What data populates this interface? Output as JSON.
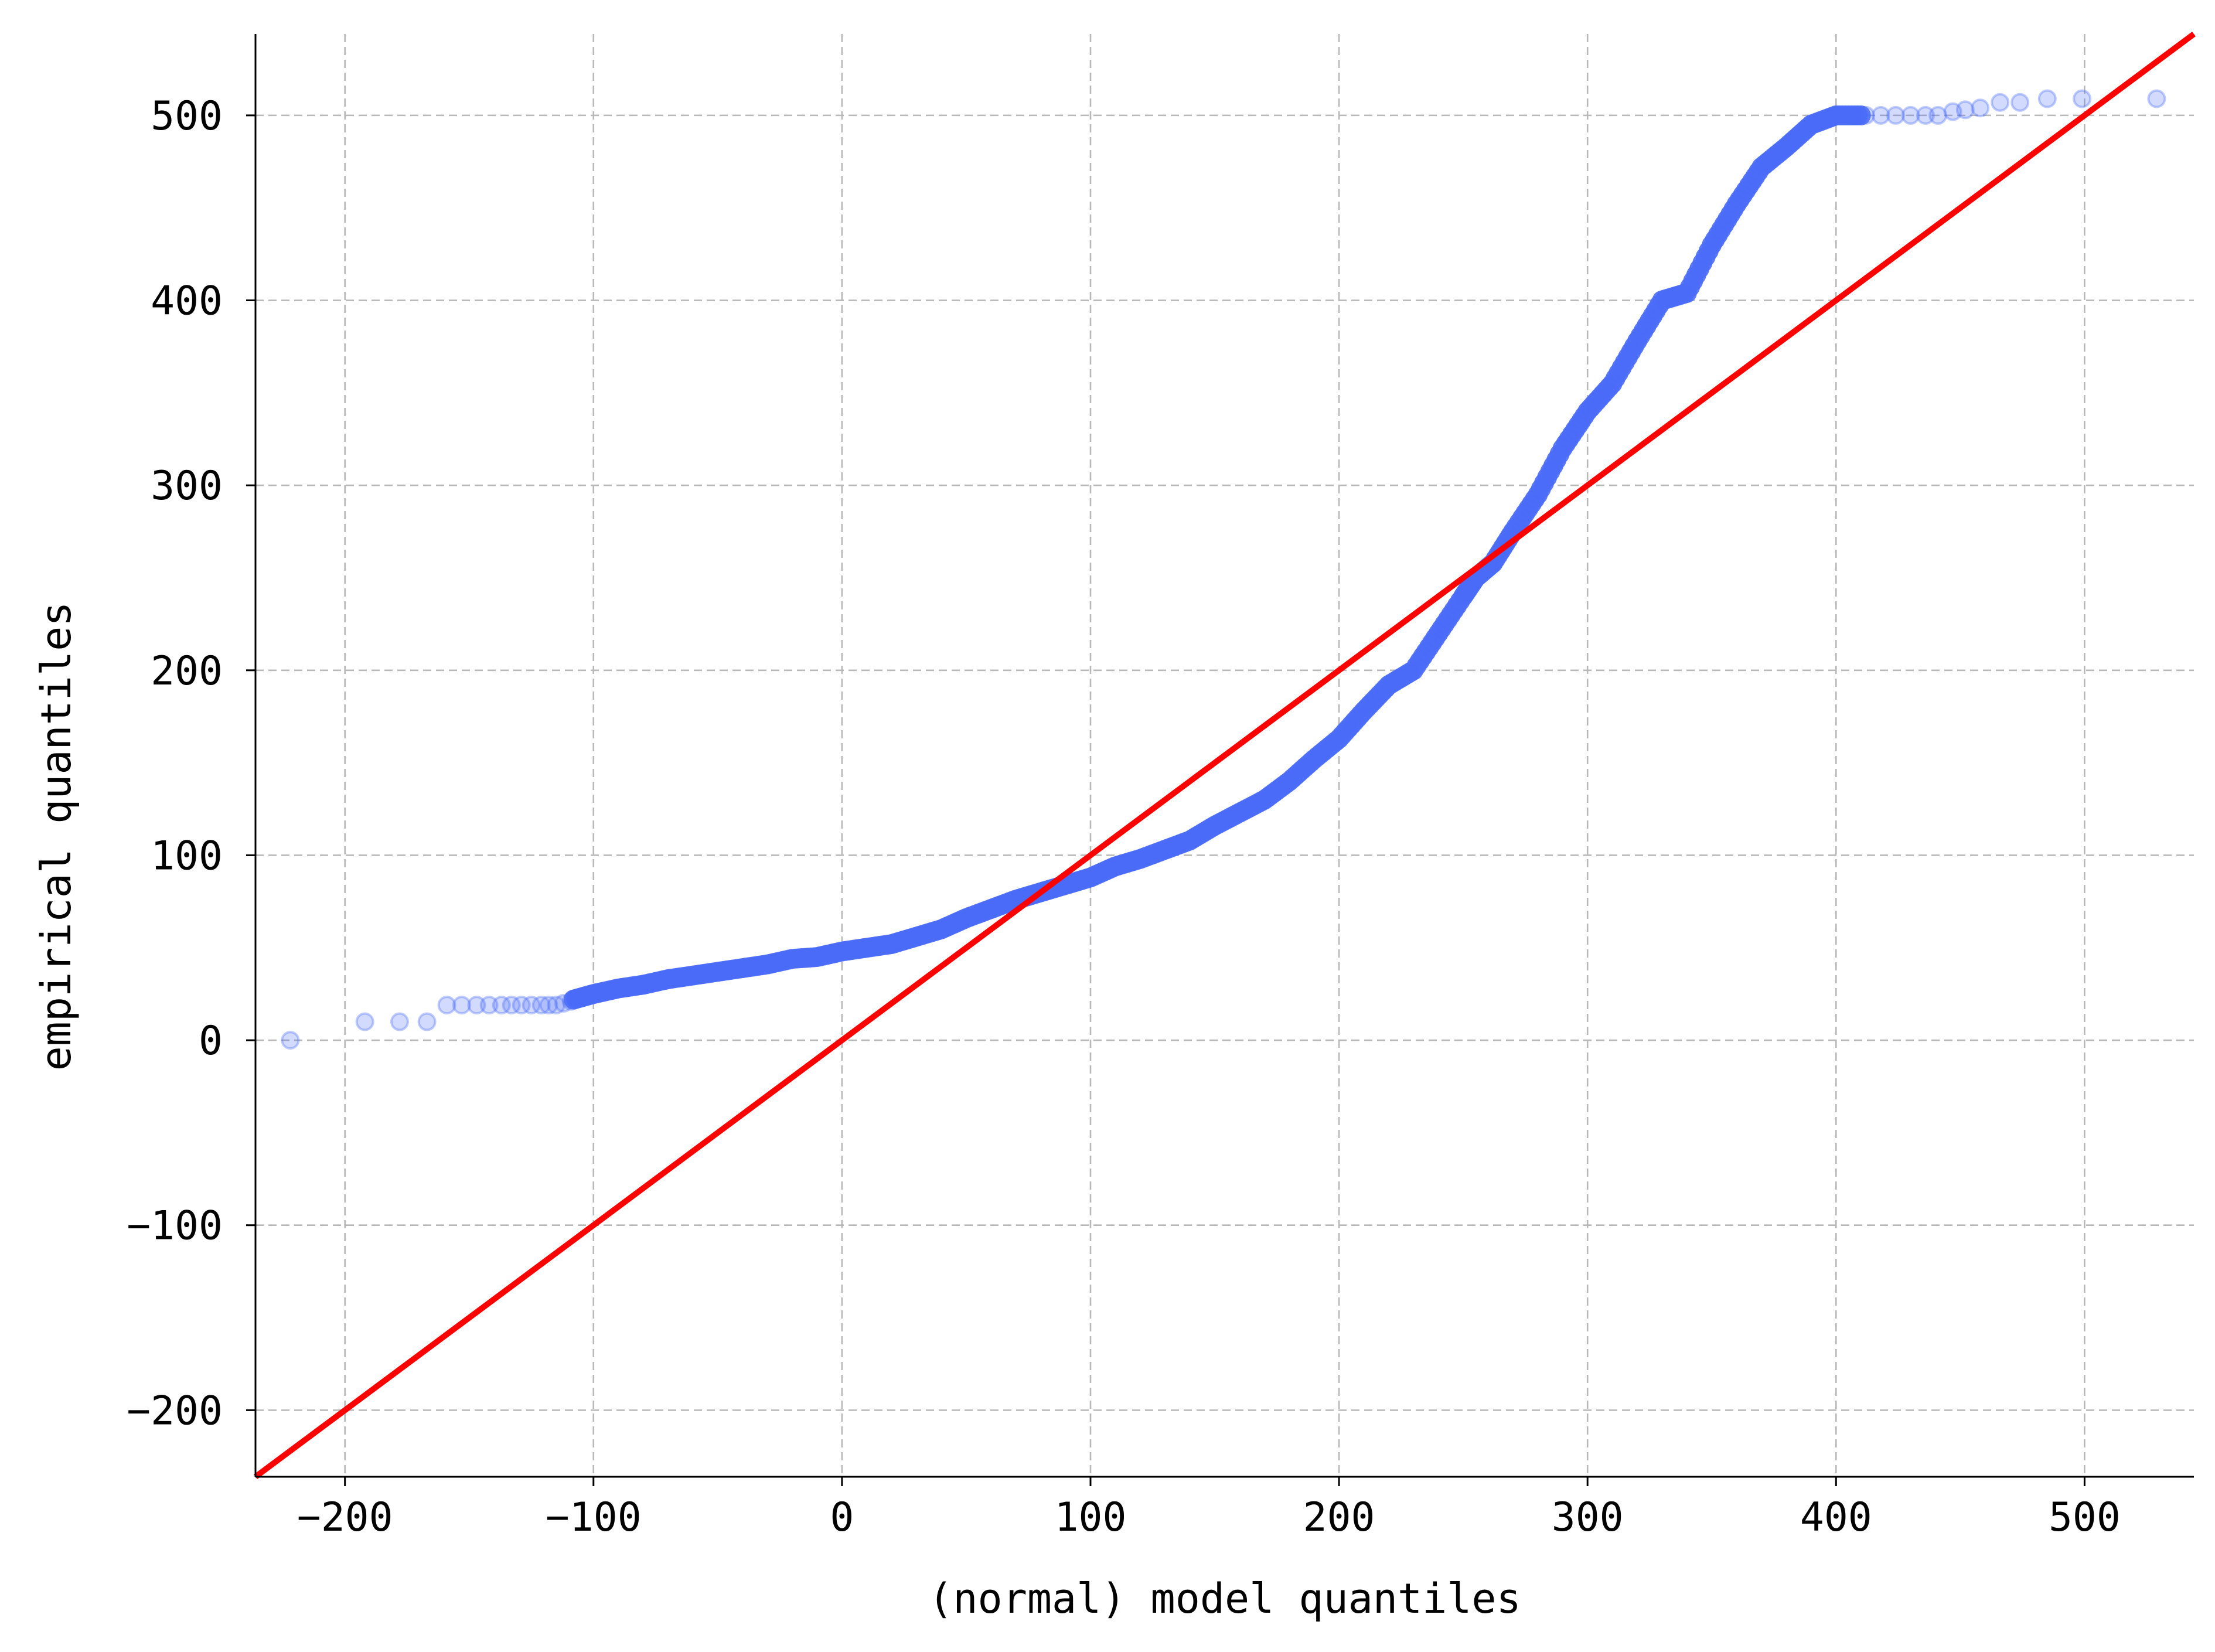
{
  "chart_data": {
    "type": "scatter",
    "title": "",
    "xlabel": "(normal) model quantiles",
    "ylabel": "empirical quantiles",
    "xlim": [
      -236,
      544
    ],
    "ylim": [
      -236,
      544
    ],
    "xticks": [
      -200,
      -100,
      0,
      100,
      200,
      300,
      400,
      500
    ],
    "yticks": [
      -200,
      -100,
      0,
      100,
      200,
      300,
      400,
      500
    ],
    "xtick_labels": [
      "−200",
      "−100",
      "0",
      "100",
      "200",
      "300",
      "400",
      "500"
    ],
    "ytick_labels": [
      "−200",
      "−100",
      "0",
      "100",
      "200",
      "300",
      "400",
      "500"
    ],
    "grid": true,
    "colors": {
      "points": "#4a6cf7",
      "reference_line": "#ff0000"
    },
    "reference_line": {
      "from": [
        -236,
        -236
      ],
      "to": [
        544,
        544
      ]
    },
    "faint_points": [
      [
        -222,
        0
      ],
      [
        -192,
        10
      ],
      [
        -178,
        10
      ],
      [
        -167,
        10
      ],
      [
        -159,
        19
      ],
      [
        -153,
        19
      ],
      [
        -147,
        19
      ],
      [
        -142,
        19
      ],
      [
        -137,
        19
      ],
      [
        -133,
        19
      ],
      [
        -129,
        19
      ],
      [
        -125,
        19
      ],
      [
        -121,
        19
      ],
      [
        -118,
        19
      ],
      [
        -115,
        19
      ],
      [
        -112,
        20
      ],
      [
        -109,
        21
      ],
      [
        412,
        500
      ],
      [
        418,
        500
      ],
      [
        424,
        500
      ],
      [
        430,
        500
      ],
      [
        436,
        500
      ],
      [
        441,
        500
      ],
      [
        447,
        502
      ],
      [
        452,
        503
      ],
      [
        458,
        504
      ],
      [
        466,
        507
      ],
      [
        474,
        507
      ],
      [
        485,
        509
      ],
      [
        499,
        509
      ],
      [
        529,
        509
      ]
    ],
    "curve_points": [
      [
        -108,
        22
      ],
      [
        -100,
        25
      ],
      [
        -90,
        28
      ],
      [
        -80,
        30
      ],
      [
        -70,
        33
      ],
      [
        -60,
        35
      ],
      [
        -50,
        37
      ],
      [
        -40,
        39
      ],
      [
        -30,
        41
      ],
      [
        -20,
        44
      ],
      [
        -10,
        45
      ],
      [
        0,
        48
      ],
      [
        10,
        50
      ],
      [
        20,
        52
      ],
      [
        30,
        56
      ],
      [
        40,
        60
      ],
      [
        50,
        66
      ],
      [
        60,
        71
      ],
      [
        70,
        76
      ],
      [
        80,
        80
      ],
      [
        90,
        84
      ],
      [
        100,
        88
      ],
      [
        110,
        94
      ],
      [
        120,
        98
      ],
      [
        130,
        103
      ],
      [
        140,
        108
      ],
      [
        150,
        116
      ],
      [
        160,
        123
      ],
      [
        170,
        130
      ],
      [
        180,
        140
      ],
      [
        190,
        152
      ],
      [
        200,
        163
      ],
      [
        210,
        178
      ],
      [
        220,
        192
      ],
      [
        230,
        200
      ],
      [
        240,
        220
      ],
      [
        250,
        240
      ],
      [
        255,
        250
      ],
      [
        262,
        258
      ],
      [
        270,
        275
      ],
      [
        280,
        295
      ],
      [
        290,
        320
      ],
      [
        300,
        340
      ],
      [
        310,
        355
      ],
      [
        320,
        378
      ],
      [
        330,
        400
      ],
      [
        340,
        404
      ],
      [
        350,
        430
      ],
      [
        360,
        452
      ],
      [
        370,
        472
      ],
      [
        380,
        483
      ],
      [
        390,
        495
      ],
      [
        400,
        500
      ],
      [
        410,
        500
      ]
    ]
  }
}
